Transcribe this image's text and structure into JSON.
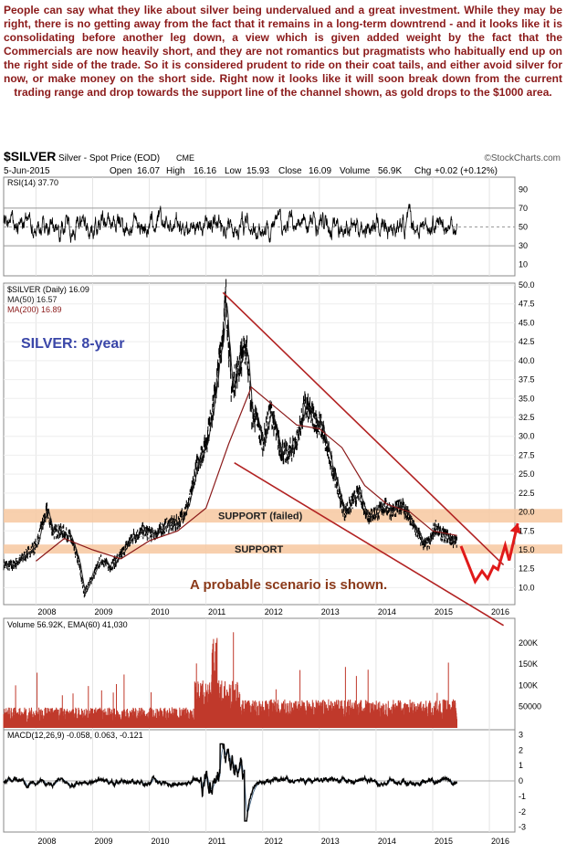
{
  "commentary": "People can say what they like about silver being undervalued and a great investment. While they may be right, there is no getting away from the fact that it remains in a long-term downtrend - and it looks like it is consolidating before another leg down, a view which is given added weight by the fact that the Commercials are now heavily short, and they are not romantics but pragmatists who habitually end up on the right side of the trade. So it is considered prudent to ride on their coat tails, and either avoid silver for now, or make money on the short side. Right now it looks like it will soon break down from the current trading range and drop towards the support line of the channel shown, as gold drops to the $1000 area.",
  "header": {
    "symbol": "$SILVER",
    "description": "Silver - Spot Price (EOD)",
    "exchange": "CME",
    "watermark": "©StockCharts.com",
    "date": "5-Jun-2015",
    "open_label": "Open",
    "open": "16.07",
    "high_label": "High",
    "high": "16.16",
    "low_label": "Low",
    "low": "15.93",
    "close_label": "Close",
    "close": "16.09",
    "volume_label": "Volume",
    "volume": "56.9K",
    "chg_label": "Chg",
    "chg": "+0.02 (+0.12%)"
  },
  "colors": {
    "price": "#000000",
    "ma50": "#222222",
    "ma200": "#8b1a1a",
    "channel": "#b22222",
    "support_band": "#f7c8a0",
    "annotation": "#8b3a1a",
    "title": "#3a46a8",
    "arrow": "#e01a1a",
    "volume_bar": "#c0392b",
    "macd": "#000000",
    "signal": "#4a6a8a"
  },
  "chart_data": [
    {
      "type": "line",
      "panel": "rsi",
      "legend": "RSI(14) 37.70",
      "ylim": [
        0,
        100
      ],
      "yticks": [
        10,
        30,
        50,
        70,
        90
      ],
      "reference_lines": [
        30,
        50,
        70
      ]
    },
    {
      "type": "line",
      "panel": "price",
      "legend": [
        "$SILVER (Daily) 16.09",
        "MA(50) 16.57",
        "MA(200) 16.89"
      ],
      "title": "SILVER: 8-year",
      "ylim": [
        8,
        50
      ],
      "yticks": [
        10.0,
        12.5,
        15.0,
        17.5,
        20.0,
        22.5,
        25.0,
        27.5,
        30.0,
        32.5,
        35.0,
        37.5,
        40.0,
        42.5,
        45.0,
        47.5,
        50.0
      ],
      "xticks": [
        "2008",
        "2009",
        "2010",
        "2011",
        "2012",
        "2013",
        "2014",
        "2015",
        "2016"
      ],
      "x": [
        2007.43,
        2007.6,
        2007.8,
        2008.0,
        2008.12,
        2008.2,
        2008.3,
        2008.45,
        2008.6,
        2008.75,
        2008.85,
        2009.0,
        2009.15,
        2009.3,
        2009.5,
        2009.7,
        2009.9,
        2010.1,
        2010.3,
        2010.5,
        2010.7,
        2010.85,
        2011.0,
        2011.15,
        2011.3,
        2011.35,
        2011.45,
        2011.6,
        2011.72,
        2011.8,
        2011.9,
        2012.0,
        2012.15,
        2012.3,
        2012.45,
        2012.6,
        2012.75,
        2012.9,
        2013.05,
        2013.15,
        2013.25,
        2013.35,
        2013.45,
        2013.55,
        2013.7,
        2013.85,
        2014.0,
        2014.15,
        2014.3,
        2014.45,
        2014.6,
        2014.75,
        2014.85,
        2014.95,
        2015.05,
        2015.15,
        2015.25,
        2015.35,
        2015.43
      ],
      "values": [
        13.0,
        12.9,
        14.2,
        15.5,
        18.5,
        20.2,
        17.3,
        17.5,
        16.8,
        13.5,
        9.2,
        11.5,
        13.8,
        12.7,
        14.2,
        16.7,
        17.5,
        17.0,
        18.2,
        18.5,
        21.0,
        26.5,
        29.0,
        35.0,
        44.0,
        48.5,
        36.0,
        40.0,
        42.0,
        33.0,
        32.0,
        29.0,
        33.5,
        28.5,
        27.5,
        29.5,
        34.0,
        32.5,
        31.0,
        28.0,
        25.5,
        22.5,
        19.8,
        21.0,
        22.5,
        19.5,
        19.8,
        20.8,
        20.0,
        21.0,
        19.0,
        17.0,
        15.6,
        16.0,
        18.2,
        17.0,
        16.8,
        16.2,
        16.09
      ],
      "ma200_x": [
        2008.0,
        2008.5,
        2009.0,
        2009.5,
        2010.0,
        2010.5,
        2011.0,
        2011.4,
        2011.8,
        2012.2,
        2012.6,
        2013.0,
        2013.4,
        2013.8,
        2014.2,
        2014.6,
        2015.0,
        2015.43
      ],
      "ma200": [
        13.5,
        16.5,
        15.0,
        13.8,
        16.2,
        17.5,
        20.5,
        29.0,
        36.5,
        34.0,
        31.5,
        31.0,
        28.5,
        23.5,
        21.0,
        20.0,
        17.5,
        16.89
      ],
      "channel_upper": [
        [
          2011.3,
          49.0
        ],
        [
          2016.25,
          13.0
        ]
      ],
      "channel_lower": [
        [
          2011.5,
          26.5
        ],
        [
          2016.25,
          5.0
        ]
      ],
      "support_bands": [
        {
          "label": "SUPPORT (failed)",
          "low": 18.6,
          "high": 20.4
        },
        {
          "label": "SUPPORT",
          "low": 14.5,
          "high": 15.7
        }
      ],
      "scenario_annotation": "A probable scenario is shown.",
      "scenario_path": [
        [
          2015.5,
          15.5
        ],
        [
          2015.75,
          10.8
        ],
        [
          2015.87,
          12.2
        ],
        [
          2015.97,
          11.2
        ],
        [
          2016.07,
          12.8
        ],
        [
          2016.15,
          12.4
        ],
        [
          2016.28,
          15.6
        ],
        [
          2016.35,
          13.6
        ],
        [
          2016.5,
          18.5
        ]
      ]
    },
    {
      "type": "bar",
      "panel": "volume",
      "legend": "Volume 56.92K, EMA(60) 41,030",
      "ylim": [
        0,
        230000
      ],
      "yticks": [
        "50000",
        "100K",
        "150K",
        "200K"
      ]
    },
    {
      "type": "line",
      "panel": "macd",
      "legend": "MACD(12,26,9) -0.058, 0.063, -0.121",
      "ylim": [
        -3.2,
        3.2
      ],
      "yticks": [
        -3,
        -2,
        -1,
        0,
        1,
        2,
        3
      ],
      "xticks": [
        "2008",
        "2009",
        "2010",
        "2011",
        "2012",
        "2013",
        "2014",
        "2015",
        "2016"
      ]
    }
  ]
}
